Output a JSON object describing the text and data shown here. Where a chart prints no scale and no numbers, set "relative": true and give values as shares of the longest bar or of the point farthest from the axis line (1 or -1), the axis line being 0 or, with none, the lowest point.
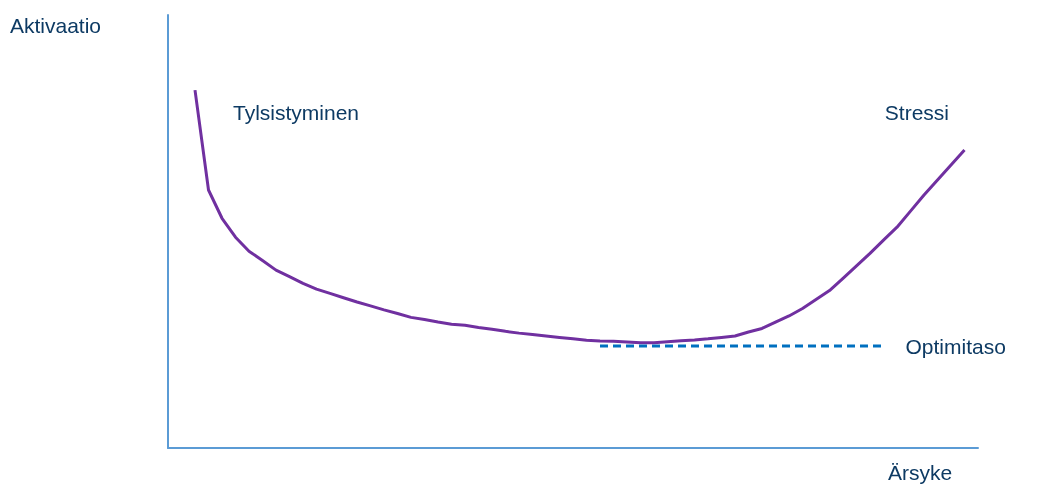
{
  "chart_data": {
    "type": "line",
    "relative": true,
    "xlabel": "Ärsyke",
    "ylabel": "Aktivaatio",
    "annotations": [
      "Tylsistyminen",
      "Stressi"
    ],
    "categories": [
      null,
      null,
      null,
      null,
      null,
      null,
      null,
      null,
      null,
      null,
      null,
      null,
      null,
      null,
      null,
      null,
      null,
      null,
      null,
      null,
      null,
      null,
      null,
      null,
      null,
      null,
      null,
      null,
      null,
      null,
      null,
      null,
      null,
      null,
      null,
      null,
      null,
      null,
      null,
      null,
      null,
      null,
      null,
      null,
      null,
      null,
      null,
      null,
      null,
      null,
      null,
      null,
      null,
      null,
      null,
      null,
      null,
      null,
      null,
      null,
      null
    ],
    "series": [
      {
        "color": "#7030a0",
        "values": [
          null,
          null,
          1.0,
          0.721,
          0.642,
          0.589,
          0.55,
          0.524,
          0.497,
          0.479,
          0.46,
          0.444,
          0.432,
          0.42,
          0.408,
          0.397,
          0.386,
          0.376,
          0.365,
          0.359,
          0.352,
          0.346,
          0.343,
          0.337,
          0.332,
          0.326,
          0.321,
          0.317,
          0.313,
          0.309,
          0.305,
          0.301,
          0.299,
          0.298,
          0.296,
          0.294,
          0.294,
          0.297,
          0.3,
          0.302,
          0.305,
          0.309,
          0.313,
          0.324,
          0.334,
          0.352,
          0.369,
          0.39,
          0.415,
          0.44,
          0.474,
          0.509,
          0.544,
          0.581,
          0.617,
          0.662,
          0.707,
          0.749,
          0.791,
          0.833,
          null
        ]
      },
      {
        "name": "Optimitaso",
        "color": "#0070c0",
        "line_style": "dashed",
        "values": [
          null,
          null,
          null,
          null,
          null,
          null,
          null,
          null,
          null,
          null,
          null,
          null,
          null,
          null,
          null,
          null,
          null,
          null,
          null,
          null,
          null,
          null,
          null,
          null,
          null,
          null,
          null,
          null,
          null,
          null,
          null,
          null,
          0.285,
          0.285,
          0.285,
          0.285,
          0.285,
          0.285,
          0.285,
          0.285,
          0.285,
          0.285,
          0.285,
          0.285,
          0.285,
          0.285,
          0.285,
          0.285,
          0.285,
          0.285,
          0.285,
          0.285,
          0.285,
          0.285,
          null,
          null,
          null,
          null,
          null,
          null,
          null
        ]
      }
    ],
    "grid": false,
    "legend": false,
    "marker": "none",
    "line_style": "solid"
  }
}
